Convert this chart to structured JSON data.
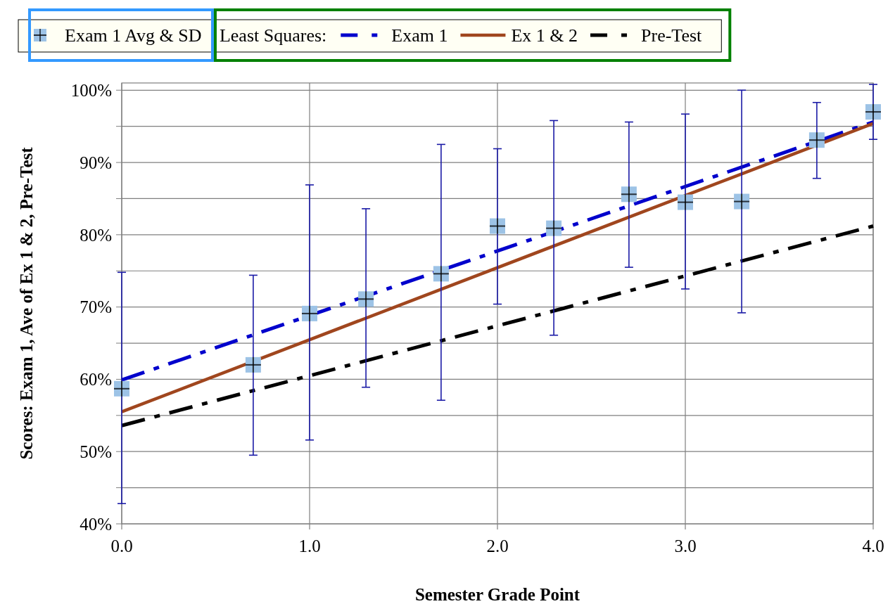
{
  "chart_data": {
    "type": "scatter",
    "xlabel": "Semester Grade Point",
    "ylabel": "Scores: Exam 1, Ave of Ex 1 & 2, Pre-Test",
    "legend_title": "Least Squares:",
    "xlim": [
      0,
      4
    ],
    "xticks": [
      {
        "value": 0,
        "label": "0.0"
      },
      {
        "value": 1,
        "label": "1.0"
      },
      {
        "value": 2,
        "label": "2.0"
      },
      {
        "value": 3,
        "label": "3.0"
      },
      {
        "value": 4,
        "label": "4.0"
      }
    ],
    "ylim": [
      40,
      101
    ],
    "yticks": [
      {
        "value": 40,
        "label": "40%"
      },
      {
        "value": 45,
        "label": null
      },
      {
        "value": 50,
        "label": "50%"
      },
      {
        "value": 55,
        "label": null
      },
      {
        "value": 60,
        "label": "60%"
      },
      {
        "value": 65,
        "label": null
      },
      {
        "value": 70,
        "label": "70%"
      },
      {
        "value": 75,
        "label": null
      },
      {
        "value": 80,
        "label": "80%"
      },
      {
        "value": 85,
        "label": null
      },
      {
        "value": 90,
        "label": "90%"
      },
      {
        "value": 95,
        "label": null
      },
      {
        "value": 100,
        "label": "100%"
      }
    ],
    "grid": true,
    "legend": "top",
    "series": [
      {
        "name": "Exam 1 Avg & SD",
        "marker": "square",
        "color": "#9dc3e6",
        "x": [
          0,
          0.7,
          1.0,
          1.3,
          1.7,
          2.0,
          2.3,
          2.7,
          3.0,
          3.3,
          3.7,
          4.0
        ],
        "values": [
          58.7,
          62.0,
          69.1,
          71.1,
          74.6,
          81.2,
          80.9,
          85.6,
          84.5,
          84.6,
          93.1,
          97.0
        ],
        "errors": [
          [
            42.8,
            74.8
          ],
          [
            49.5,
            74.4
          ],
          [
            51.6,
            86.9
          ],
          [
            58.9,
            83.6
          ],
          [
            57.1,
            92.5
          ],
          [
            70.4,
            91.9
          ],
          [
            66.1,
            95.8
          ],
          [
            75.5,
            95.6
          ],
          [
            72.5,
            96.7
          ],
          [
            69.2,
            100.0
          ],
          [
            87.8,
            98.3
          ],
          [
            93.2,
            100.8
          ]
        ]
      },
      {
        "name": "Exam 1",
        "type": "line",
        "line_style": "dashed",
        "color": "#0000cc",
        "x": [
          0,
          4
        ],
        "values": [
          59.9,
          95.6
        ]
      },
      {
        "name": "Ex 1 & 2",
        "type": "line",
        "line_style": "solid",
        "color": "#a0461e",
        "x": [
          0,
          4
        ],
        "values": [
          55.5,
          95.4
        ]
      },
      {
        "name": "Pre-Test",
        "type": "line",
        "line_style": "dashed",
        "color": "#000000",
        "x": [
          0,
          4
        ],
        "values": [
          53.6,
          81.2
        ]
      }
    ]
  }
}
